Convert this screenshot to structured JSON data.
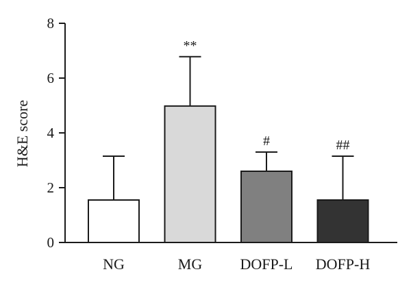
{
  "chart_data": {
    "type": "bar",
    "ylabel": "H&E score",
    "ylim": [
      0,
      8
    ],
    "yticks": [
      "0",
      "2",
      "4",
      "6",
      "8"
    ],
    "categories": [
      "NG",
      "MG",
      "DOFP-L",
      "DOFP-H"
    ],
    "values": [
      1.55,
      4.98,
      2.6,
      1.55
    ],
    "errors": [
      1.6,
      1.8,
      0.7,
      1.6
    ],
    "annotations": [
      "",
      "**",
      "#",
      "##"
    ],
    "colors": [
      "#ffffff",
      "#d9d9d9",
      "#808080",
      "#333333"
    ],
    "grid": false,
    "legend": "none"
  }
}
